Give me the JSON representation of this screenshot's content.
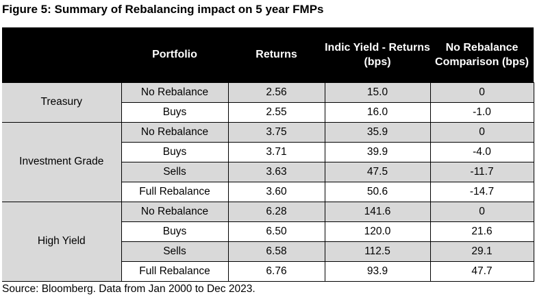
{
  "title": "Figure 5: Summary of Rebalancing impact on 5 year FMPs",
  "columns": [
    "",
    "Portfolio",
    "Returns",
    "Indic Yield - Returns (bps)",
    "No Rebalance Comparison (bps)"
  ],
  "groups": [
    {
      "name": "Treasury",
      "rows": [
        {
          "portfolio": "No Rebalance",
          "returns": "2.56",
          "indic_yield": "15.0",
          "comparison": "0"
        },
        {
          "portfolio": "Buys",
          "returns": "2.55",
          "indic_yield": "16.0",
          "comparison": "-1.0"
        }
      ]
    },
    {
      "name": "Investment Grade",
      "rows": [
        {
          "portfolio": "No Rebalance",
          "returns": "3.75",
          "indic_yield": "35.9",
          "comparison": "0"
        },
        {
          "portfolio": "Buys",
          "returns": "3.71",
          "indic_yield": "39.9",
          "comparison": "-4.0"
        },
        {
          "portfolio": "Sells",
          "returns": "3.63",
          "indic_yield": "47.5",
          "comparison": "-11.7"
        },
        {
          "portfolio": "Full Rebalance",
          "returns": "3.60",
          "indic_yield": "50.6",
          "comparison": "-14.7"
        }
      ]
    },
    {
      "name": "High Yield",
      "rows": [
        {
          "portfolio": "No Rebalance",
          "returns": "6.28",
          "indic_yield": "141.6",
          "comparison": "0"
        },
        {
          "portfolio": "Buys",
          "returns": "6.50",
          "indic_yield": "120.0",
          "comparison": "21.6"
        },
        {
          "portfolio": "Sells",
          "returns": "6.58",
          "indic_yield": "112.5",
          "comparison": "29.1"
        },
        {
          "portfolio": "Full Rebalance",
          "returns": "6.76",
          "indic_yield": "93.9",
          "comparison": "47.7"
        }
      ]
    }
  ],
  "source": "Source: Bloomberg. Data from Jan 2000 to Dec 2023.",
  "colors": {
    "header_bg": "#000000",
    "header_text": "#ffffff",
    "shade": "#d9d9d9",
    "border": "#000000"
  }
}
